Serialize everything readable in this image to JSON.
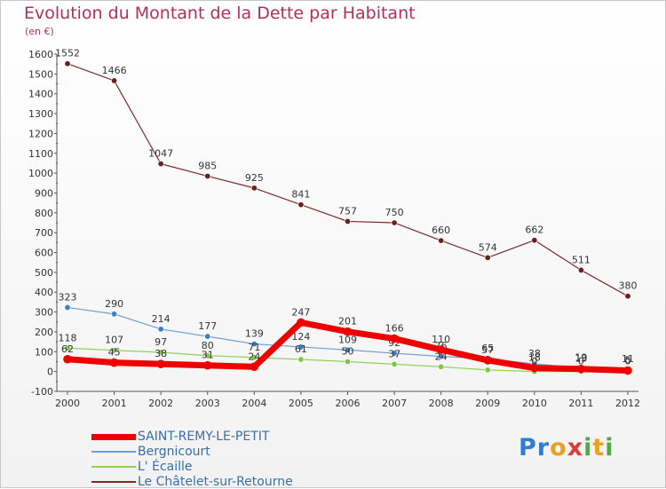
{
  "title": "Evolution du Montant de la Dette par Habitant",
  "subtitle": "(en €)",
  "logo": {
    "letters": [
      "P",
      "r",
      "o",
      "x",
      "i",
      "t",
      "i"
    ],
    "colors": [
      "#2a7fd4",
      "#2a7fd4",
      "#e8a020",
      "#e03a3a",
      "#4cae3a",
      "#e8a020",
      "#4cae3a"
    ]
  },
  "chart_data": {
    "type": "line",
    "x": [
      "2000",
      "2001",
      "2002",
      "2003",
      "2004",
      "2005",
      "2006",
      "2007",
      "2008",
      "2009",
      "2010",
      "2011",
      "2012"
    ],
    "ylim": [
      -100,
      1600
    ],
    "yticks": [
      -100,
      0,
      100,
      200,
      300,
      400,
      500,
      600,
      700,
      800,
      900,
      1000,
      1100,
      1200,
      1300,
      1400,
      1500,
      1600
    ],
    "grid": false,
    "legend_position": "bottom-left",
    "series": [
      {
        "name": "Le Châtelet-sur-Retourne",
        "color": "#7a2a2a",
        "dot": "#6b1f1f",
        "width": 1.2,
        "values": [
          1552,
          1466,
          1047,
          985,
          925,
          841,
          757,
          750,
          660,
          574,
          662,
          511,
          380
        ],
        "labels": [
          "1552",
          "1466",
          "1047",
          "985",
          "925",
          "841",
          "757",
          "750",
          "660",
          "574",
          "662",
          "511",
          "380"
        ]
      },
      {
        "name": "Bergnicourt",
        "color": "#6a9fd0",
        "dot": "#3a7fc4",
        "width": 1.2,
        "values": [
          323,
          290,
          214,
          177,
          139,
          124,
          109,
          92,
          76,
          65,
          38,
          19,
          11
        ],
        "labels": [
          "323",
          "290",
          "214",
          "177",
          "139",
          "124",
          "109",
          "92",
          "76",
          "65",
          "38",
          "19",
          "11"
        ]
      },
      {
        "name": "L' Écaille",
        "color": "#8fd05a",
        "dot": "#7cc840",
        "width": 1.2,
        "values": [
          118,
          107,
          97,
          80,
          71,
          61,
          50,
          37,
          24,
          8,
          0,
          0,
          0
        ],
        "labels": [
          "118",
          "107",
          "97",
          "80",
          "71",
          "61",
          "50",
          "37",
          "24",
          "8",
          "0",
          "0",
          "0"
        ]
      },
      {
        "name": "SAINT-REMY-LE-PETIT",
        "color": "#ee0000",
        "dot": "#ee0000",
        "width": 7,
        "values": [
          62,
          45,
          38,
          31,
          24,
          247,
          201,
          166,
          110,
          57,
          18,
          13,
          5
        ],
        "labels": [
          "62",
          "45",
          "38",
          "31",
          "24",
          "247",
          "201",
          "166",
          "110",
          "57",
          "18",
          "13",
          "5"
        ]
      }
    ]
  },
  "legend_order": [
    3,
    1,
    2,
    0
  ]
}
